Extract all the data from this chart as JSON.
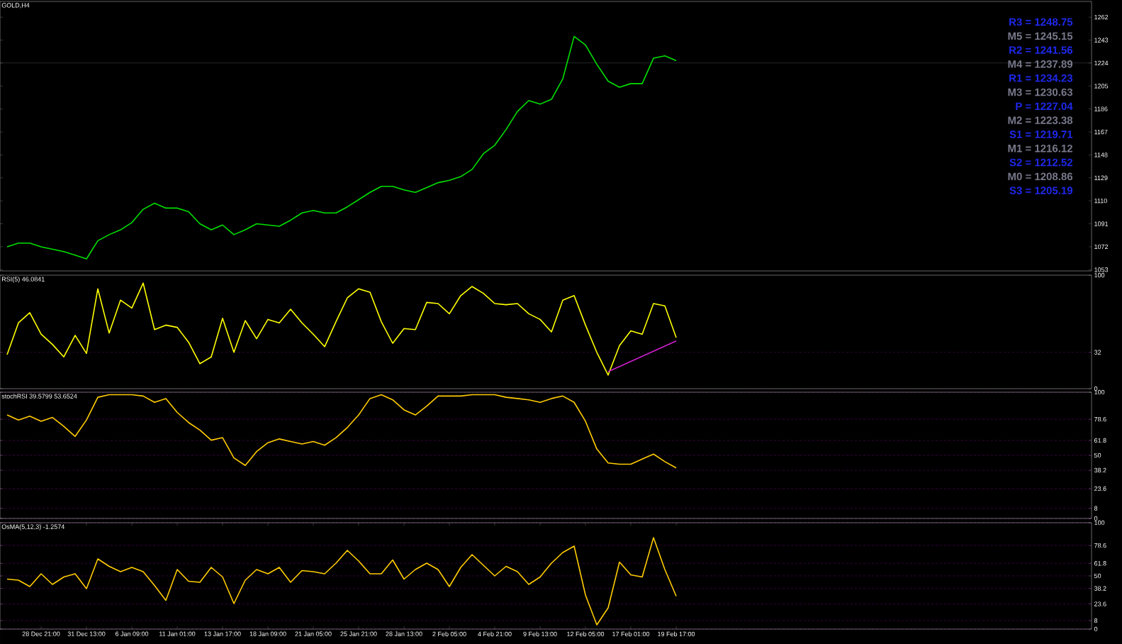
{
  "chart_data": [
    {
      "type": "line",
      "title": "GOLD,H4",
      "annotations": [
        "R3 = 1248.75",
        "M5 = 1245.15",
        "R2 = 1241.56",
        "M4 = 1237.89",
        "R1 = 1234.23",
        "M3 = 1230.63",
        "P   = 1227.04",
        "M2 = 1223.38",
        "S1 = 1219.71",
        "M1 = 1216.12",
        "S2 = 1212.52",
        "M0 = 1208.86",
        "S3 = 1205.19"
      ],
      "categories": [
        null,
        null,
        null,
        null,
        null,
        null,
        null,
        null,
        null,
        null,
        null,
        null,
        null,
        null,
        null,
        null,
        null,
        null,
        null,
        null,
        null,
        null,
        null,
        null,
        null,
        null,
        null,
        null,
        null,
        null,
        null,
        null,
        null,
        null,
        null,
        null,
        null,
        null,
        null,
        null,
        null,
        null,
        null,
        null,
        null,
        null,
        null,
        null,
        null,
        null,
        null,
        null,
        null,
        null,
        null,
        null,
        null,
        null,
        null,
        null
      ],
      "series": [
        {
          "color": "#00e000",
          "values": [
            1072,
            1075,
            1075,
            1072,
            1070,
            1068,
            1065,
            1062,
            1077,
            1082,
            1086,
            1092,
            1103,
            1108,
            1104,
            1104,
            1101,
            1091,
            1086,
            1090,
            1082,
            1086,
            1091,
            1090,
            1089,
            1094,
            1100,
            1102,
            1100,
            1100,
            1105,
            1111,
            1117,
            1122,
            1122,
            1119,
            1117,
            1121,
            1125,
            1127,
            1130,
            1136,
            1149,
            1156,
            1169,
            1184,
            1193,
            1190,
            1194,
            1211,
            1246,
            1239,
            1223,
            1209,
            1204,
            1207,
            1207,
            1228,
            1230,
            1226
          ]
        }
      ],
      "ref_lines": [
        {
          "axis": "y",
          "value": 1224,
          "color": "#a0a8b8"
        }
      ],
      "ylim": [
        1052,
        1275
      ],
      "yticks": [
        1053,
        1072,
        1091,
        1110,
        1129,
        1148,
        1167,
        1186,
        1205,
        1224,
        1243,
        1262
      ],
      "tick_labels": "y"
    },
    {
      "type": "line",
      "title": "RSI(5) 46.0841",
      "categories": [
        null,
        null,
        null,
        null,
        null,
        null,
        null,
        null,
        null,
        null,
        null,
        null,
        null,
        null,
        null,
        null,
        null,
        null,
        null,
        null,
        null,
        null,
        null,
        null,
        null,
        null,
        null,
        null,
        null,
        null,
        null,
        null,
        null,
        null,
        null,
        null,
        null,
        null,
        null,
        null,
        null,
        null,
        null,
        null,
        null,
        null,
        null,
        null,
        null,
        null,
        null,
        null,
        null,
        null,
        null,
        null,
        null,
        null,
        null,
        null
      ],
      "series": [
        {
          "color": "#ffff00",
          "values": [
            30,
            58,
            67,
            48,
            39,
            28,
            47,
            31,
            88,
            49,
            78,
            71,
            93,
            52,
            56,
            54,
            41,
            22,
            28,
            62,
            32,
            60,
            44,
            61,
            58,
            70,
            58,
            48,
            37,
            59,
            80,
            88,
            85,
            59,
            40,
            53,
            52,
            76,
            75,
            66,
            82,
            90,
            84,
            75,
            74,
            75,
            66,
            61,
            50,
            78,
            82,
            56,
            32,
            12,
            38,
            51,
            48,
            75,
            73,
            45
          ]
        },
        {
          "color": "#d020d0",
          "values": [
            null,
            null,
            null,
            null,
            null,
            null,
            null,
            null,
            null,
            null,
            null,
            null,
            null,
            null,
            null,
            null,
            null,
            null,
            null,
            null,
            null,
            null,
            null,
            null,
            null,
            null,
            null,
            null,
            null,
            null,
            null,
            null,
            null,
            null,
            null,
            null,
            null,
            null,
            null,
            null,
            null,
            null,
            null,
            null,
            null,
            null,
            null,
            null,
            null,
            null,
            null,
            null,
            null,
            15,
            null,
            null,
            null,
            null,
            null,
            42
          ]
        }
      ],
      "ref_lines": [
        {
          "axis": "y",
          "value": 32,
          "color": "#8c00a0",
          "line_style": "dashed"
        }
      ],
      "ylim": [
        0,
        100
      ],
      "yticks": [
        0,
        32,
        100
      ],
      "tick_labels": "y"
    },
    {
      "type": "line",
      "title": "stochRSI 39.5799 53.6524",
      "categories": [
        null,
        null,
        null,
        null,
        null,
        null,
        null,
        null,
        null,
        null,
        null,
        null,
        null,
        null,
        null,
        null,
        null,
        null,
        null,
        null,
        null,
        null,
        null,
        null,
        null,
        null,
        null,
        null,
        null,
        null,
        null,
        null,
        null,
        null,
        null,
        null,
        null,
        null,
        null,
        null,
        null,
        null,
        null,
        null,
        null,
        null,
        null,
        null,
        null,
        null,
        null,
        null,
        null,
        null,
        null,
        null,
        null,
        null,
        null,
        null
      ],
      "series": [
        {
          "color": "#ffcc00",
          "values": [
            82,
            78,
            81,
            77,
            80,
            73,
            65,
            78,
            96,
            98,
            98,
            98,
            97,
            92,
            95,
            84,
            76,
            70,
            62,
            64,
            48,
            42,
            53,
            60,
            63,
            61,
            59,
            61,
            58,
            64,
            72,
            82,
            95,
            98,
            94,
            86,
            82,
            89,
            97,
            97,
            97,
            98,
            98,
            98,
            96,
            95,
            94,
            92,
            95,
            97,
            92,
            77,
            55,
            44,
            43,
            43,
            47,
            51,
            45,
            40
          ]
        }
      ],
      "ylim": [
        0,
        100
      ],
      "yticks": [
        0,
        8,
        23.6,
        38.2,
        50,
        61.8,
        78.6,
        100
      ],
      "grid": "y",
      "tick_labels": "y"
    },
    {
      "type": "line",
      "title": "OsMA(5,12,3) -1.2574",
      "categories": [
        null,
        null,
        null,
        "28 Dec 21:00",
        null,
        null,
        null,
        "31 Dec 13:00",
        null,
        null,
        null,
        "6 Jan 09:00",
        null,
        null,
        null,
        "11 Jan 01:00",
        null,
        null,
        null,
        "13 Jan 17:00",
        null,
        null,
        null,
        "18 Jan 09:00",
        null,
        null,
        null,
        "21 Jan 05:00",
        null,
        null,
        null,
        "25 Jan 21:00",
        null,
        null,
        null,
        "28 Jan 13:00",
        null,
        null,
        null,
        "2 Feb 05:00",
        null,
        null,
        null,
        "4 Feb 21:00",
        null,
        null,
        null,
        "9 Feb 13:00",
        null,
        null,
        null,
        "12 Feb 05:00",
        null,
        null,
        null,
        "17 Feb 01:00",
        null,
        null,
        null,
        "19 Feb 17:00"
      ],
      "series": [
        {
          "color": "#ffcc00",
          "values": [
            47,
            46,
            40,
            52,
            42,
            49,
            52,
            38,
            66,
            59,
            54,
            58,
            54,
            41,
            27,
            56,
            45,
            44,
            58,
            49,
            24,
            46,
            56,
            52,
            58,
            44,
            55,
            54,
            52,
            62,
            74,
            64,
            52,
            52,
            65,
            47,
            56,
            62,
            56,
            40,
            58,
            70,
            60,
            50,
            59,
            54,
            42,
            49,
            62,
            72,
            78,
            32,
            4,
            20,
            63,
            51,
            49,
            86,
            56,
            31
          ]
        }
      ],
      "ylim": [
        0,
        100
      ],
      "yticks": [
        0,
        8,
        23.6,
        38.2,
        50,
        61.8,
        78.6,
        100
      ],
      "grid": "y"
    }
  ]
}
